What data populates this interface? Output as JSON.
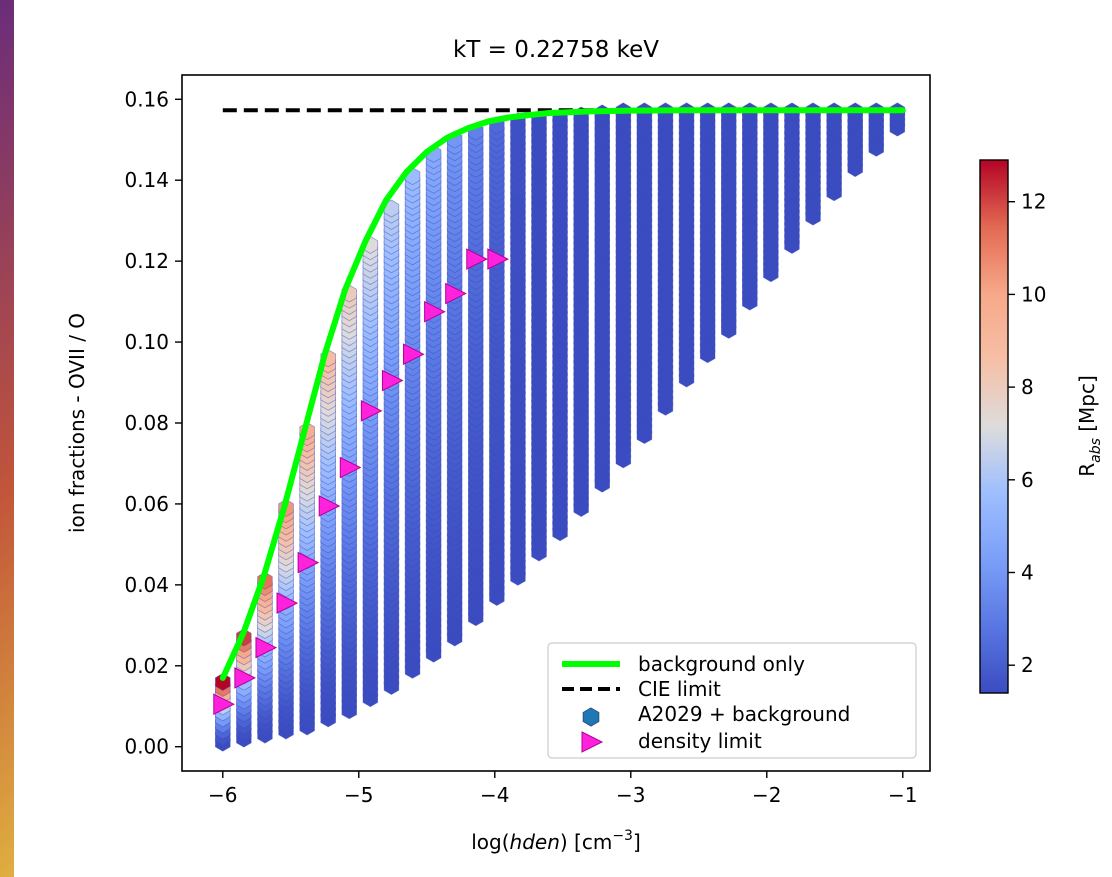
{
  "chart_data": {
    "type": "scatter",
    "title": "kT = 0.22758 keV",
    "xlabel_pre": "log(",
    "xlabel_italic": "hden",
    "xlabel_post": ") [cm",
    "xlabel_sup": "−3",
    "xlabel_close": "]",
    "ylabel": "ion fractions - OVII / O",
    "xlim": [
      -6.3,
      -0.8
    ],
    "ylim": [
      -0.006,
      0.166
    ],
    "xticks": [
      -6,
      -5,
      -4,
      -3,
      -2,
      -1
    ],
    "xtick_labels": [
      "−6",
      "−5",
      "−4",
      "−3",
      "−2",
      "−1"
    ],
    "yticks": [
      0.0,
      0.02,
      0.04,
      0.06,
      0.08,
      0.1,
      0.12,
      0.14,
      0.16
    ],
    "ytick_labels": [
      "0.00",
      "0.02",
      "0.04",
      "0.06",
      "0.08",
      "0.10",
      "0.12",
      "0.14",
      "0.16"
    ],
    "colorbar": {
      "label_main": "R",
      "label_sub": "abs",
      "label_unit": " [Mpc]",
      "range": [
        1.4,
        12.9
      ],
      "ticks": [
        2,
        4,
        6,
        8,
        10,
        12
      ],
      "tick_labels": [
        "2",
        "4",
        "6",
        "8",
        "10",
        "12"
      ],
      "colormap": "coolwarm"
    },
    "series": [
      {
        "name": "background only",
        "kind": "line",
        "color": "#00ff00",
        "x": [
          -6.0,
          -5.85,
          -5.7,
          -5.55,
          -5.4,
          -5.25,
          -5.1,
          -4.95,
          -4.8,
          -4.65,
          -4.5,
          -4.35,
          -4.2,
          -4.05,
          -3.9,
          -3.75,
          -3.6,
          -3.3,
          -3.0,
          -2.6,
          -2.0,
          -1.5,
          -1.0
        ],
        "y": [
          0.017,
          0.028,
          0.042,
          0.059,
          0.078,
          0.097,
          0.113,
          0.125,
          0.135,
          0.142,
          0.147,
          0.1505,
          0.1528,
          0.1545,
          0.1555,
          0.1561,
          0.1566,
          0.157,
          0.1572,
          0.1573,
          0.1573,
          0.1573,
          0.1573
        ]
      },
      {
        "name": "CIE limit",
        "kind": "dashed-line",
        "color": "#000000",
        "x": [
          -6.0,
          -1.0
        ],
        "y": [
          0.1573,
          0.1573
        ]
      },
      {
        "name": "A2029 + background",
        "kind": "scatter-columns",
        "marker": "hexagon",
        "legend_color": "#1f77b4",
        "columns": [
          {
            "x": -6.0,
            "y_min": 0.001,
            "y_max": 0.016
          },
          {
            "x": -5.845,
            "y_min": 0.002,
            "y_max": 0.027
          },
          {
            "x": -5.69,
            "y_min": 0.003,
            "y_max": 0.041
          },
          {
            "x": -5.535,
            "y_min": 0.004,
            "y_max": 0.059
          },
          {
            "x": -5.38,
            "y_min": 0.005,
            "y_max": 0.078
          },
          {
            "x": -5.225,
            "y_min": 0.007,
            "y_max": 0.096
          },
          {
            "x": -5.07,
            "y_min": 0.009,
            "y_max": 0.112
          },
          {
            "x": -4.915,
            "y_min": 0.012,
            "y_max": 0.124
          },
          {
            "x": -4.76,
            "y_min": 0.015,
            "y_max": 0.133
          },
          {
            "x": -4.605,
            "y_min": 0.019,
            "y_max": 0.141
          },
          {
            "x": -4.45,
            "y_min": 0.023,
            "y_max": 0.1465
          },
          {
            "x": -4.295,
            "y_min": 0.027,
            "y_max": 0.15
          },
          {
            "x": -4.14,
            "y_min": 0.032,
            "y_max": 0.152
          },
          {
            "x": -3.985,
            "y_min": 0.037,
            "y_max": 0.1535
          },
          {
            "x": -3.83,
            "y_min": 0.042,
            "y_max": 0.1545
          },
          {
            "x": -3.675,
            "y_min": 0.048,
            "y_max": 0.155
          },
          {
            "x": -3.52,
            "y_min": 0.053,
            "y_max": 0.1555
          },
          {
            "x": -3.365,
            "y_min": 0.059,
            "y_max": 0.156
          },
          {
            "x": -3.21,
            "y_min": 0.065,
            "y_max": 0.1565
          },
          {
            "x": -3.055,
            "y_min": 0.071,
            "y_max": 0.157
          },
          {
            "x": -2.9,
            "y_min": 0.077,
            "y_max": 0.157
          },
          {
            "x": -2.745,
            "y_min": 0.084,
            "y_max": 0.157
          },
          {
            "x": -2.59,
            "y_min": 0.091,
            "y_max": 0.157
          },
          {
            "x": -2.435,
            "y_min": 0.097,
            "y_max": 0.157
          },
          {
            "x": -2.28,
            "y_min": 0.103,
            "y_max": 0.157
          },
          {
            "x": -2.125,
            "y_min": 0.11,
            "y_max": 0.157
          },
          {
            "x": -1.97,
            "y_min": 0.117,
            "y_max": 0.157
          },
          {
            "x": -1.815,
            "y_min": 0.124,
            "y_max": 0.157
          },
          {
            "x": -1.66,
            "y_min": 0.131,
            "y_max": 0.157
          },
          {
            "x": -1.505,
            "y_min": 0.137,
            "y_max": 0.157
          },
          {
            "x": -1.35,
            "y_min": 0.143,
            "y_max": 0.157
          },
          {
            "x": -1.195,
            "y_min": 0.148,
            "y_max": 0.157
          },
          {
            "x": -1.04,
            "y_min": 0.153,
            "y_max": 0.157
          }
        ]
      },
      {
        "name": "density limit",
        "kind": "scatter",
        "marker": "triangle-right",
        "color": "#ff22dd",
        "x": [
          -6.0,
          -5.845,
          -5.69,
          -5.535,
          -5.38,
          -5.225,
          -5.07,
          -4.915,
          -4.76,
          -4.605,
          -4.45,
          -4.295,
          -4.14,
          -3.985
        ],
        "y": [
          0.0105,
          0.017,
          0.0245,
          0.0355,
          0.0455,
          0.0595,
          0.069,
          0.083,
          0.0905,
          0.097,
          0.1075,
          0.112,
          0.1205,
          0.1205
        ]
      }
    ],
    "legend_position": "lower right"
  }
}
